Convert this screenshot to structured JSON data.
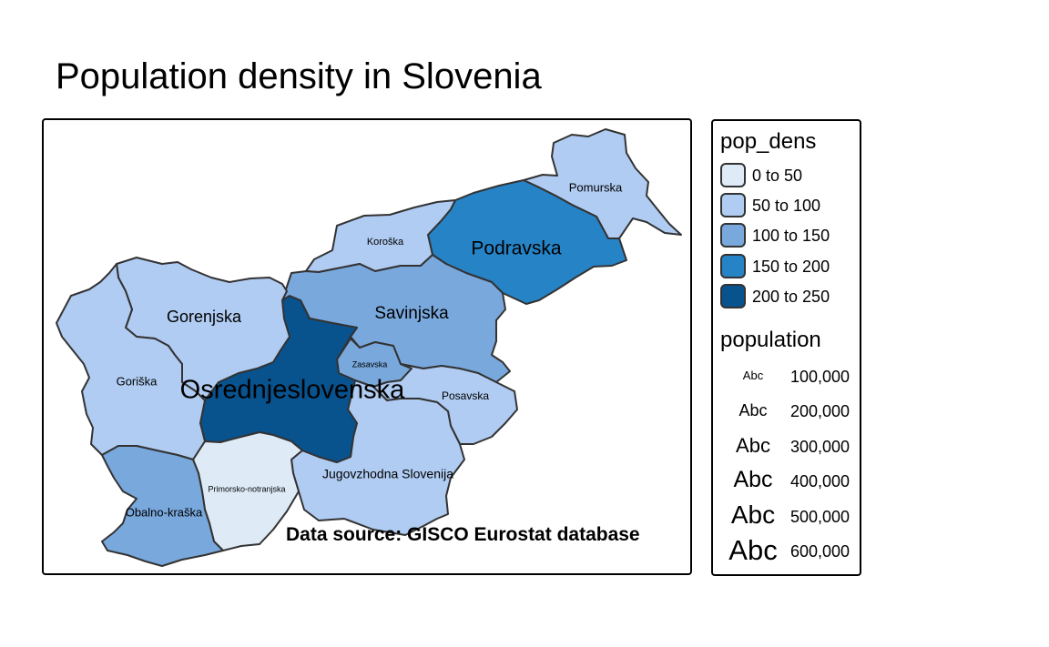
{
  "title": "Population density in Slovenia",
  "credit": "Data source: GISCO Eurostat database",
  "legend": {
    "fill_title": "pop_dens",
    "fill_classes": [
      {
        "label": "0 to 50",
        "color": "#DEEBF7"
      },
      {
        "label": "50 to 100",
        "color": "#B0CCF2"
      },
      {
        "label": "100 to 150",
        "color": "#79A8DD"
      },
      {
        "label": "150 to 200",
        "color": "#2683C6"
      },
      {
        "label": "200 to 250",
        "color": "#08528E"
      }
    ],
    "size_title": "population",
    "size_classes": [
      {
        "sample": "Abc",
        "label": "100,000"
      },
      {
        "sample": "Abc",
        "label": "200,000"
      },
      {
        "sample": "Abc",
        "label": "300,000"
      },
      {
        "sample": "Abc",
        "label": "400,000"
      },
      {
        "sample": "Abc",
        "label": "500,000"
      },
      {
        "sample": "Abc",
        "label": "600,000"
      }
    ]
  },
  "regions": [
    {
      "name": "Pomurska",
      "density_class": "50 to 100",
      "color": "#B0CCF2"
    },
    {
      "name": "Podravska",
      "density_class": "150 to 200",
      "color": "#2683C6"
    },
    {
      "name": "Koroška",
      "density_class": "50 to 100",
      "color": "#B0CCF2"
    },
    {
      "name": "Savinjska",
      "density_class": "100 to 150",
      "color": "#79A8DD"
    },
    {
      "name": "Zasavska",
      "density_class": "100 to 150",
      "color": "#79A8DD"
    },
    {
      "name": "Posavska",
      "density_class": "50 to 100",
      "color": "#B0CCF2"
    },
    {
      "name": "Jugovzhodna Slovenija",
      "density_class": "50 to 100",
      "color": "#B0CCF2"
    },
    {
      "name": "Osrednjeslovenska",
      "density_class": "200 to 250",
      "color": "#08528E"
    },
    {
      "name": "Gorenjska",
      "density_class": "50 to 100",
      "color": "#B0CCF2"
    },
    {
      "name": "Primorsko-notranjska",
      "density_class": "0 to 50",
      "color": "#DEEBF7"
    },
    {
      "name": "Goriška",
      "density_class": "50 to 100",
      "color": "#B0CCF2"
    },
    {
      "name": "Obalno-kraška",
      "density_class": "100 to 150",
      "color": "#79A8DD"
    }
  ]
}
